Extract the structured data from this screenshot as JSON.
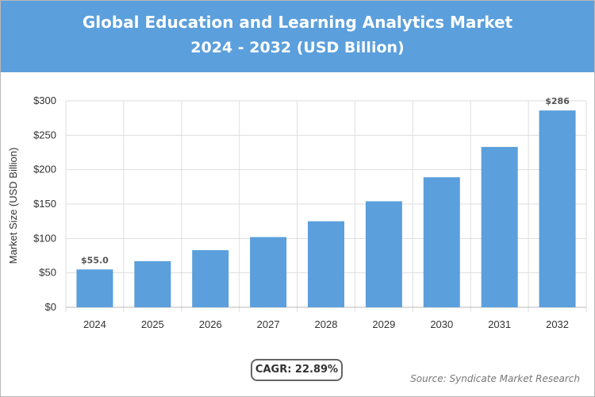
{
  "header": {
    "title": "Global Education and Learning Analytics Market",
    "subtitle": "2024 - 2032 (USD Billion)"
  },
  "colors": {
    "header_bg": "#5b9fdc",
    "bar": "#5b9fdc"
  },
  "chart_data": {
    "type": "bar",
    "title": "Global Education and Learning Analytics Market",
    "subtitle": "2024 - 2032 (USD Billion)",
    "xlabel": "",
    "ylabel": "Market Size (USD Billion)",
    "categories": [
      "2024",
      "2025",
      "2026",
      "2027",
      "2028",
      "2029",
      "2030",
      "2031",
      "2032"
    ],
    "values": [
      55.0,
      67,
      83,
      102,
      125,
      154,
      189,
      233,
      286
    ],
    "data_labels": [
      "$55.0",
      "",
      "",
      "",
      "",
      "",
      "",
      "",
      "$286"
    ],
    "yticks": [
      "$0",
      "$50",
      "$100",
      "$150",
      "$200",
      "$250",
      "$300"
    ],
    "ylim": [
      0,
      300
    ],
    "grid": true,
    "legend": "none"
  },
  "cagr_label": "CAGR: 22.89%",
  "source": "Source: Syndicate Market Research"
}
